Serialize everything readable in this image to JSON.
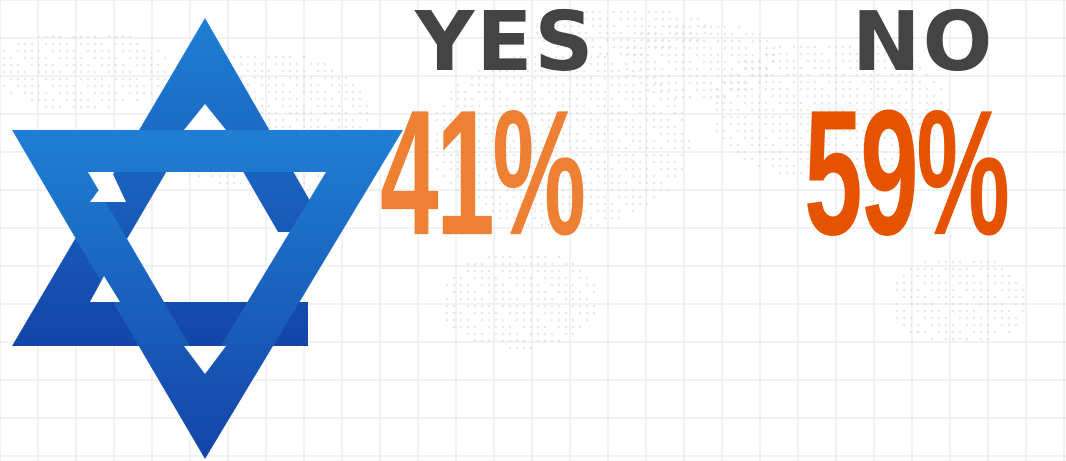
{
  "colors": {
    "label": "#444444",
    "yes_value": "#ee8034",
    "no_value": "#e55300",
    "star_top": "#1f7fd4",
    "star_bottom": "#1444a8",
    "grid": "#e3e6ea",
    "map_dots": "#d4d8dd"
  },
  "icons": {
    "emblem": "star-of-david-icon"
  },
  "poll": {
    "yes": {
      "label": "YES",
      "value": "41%"
    },
    "no": {
      "label": "NO",
      "value": "59%"
    }
  }
}
